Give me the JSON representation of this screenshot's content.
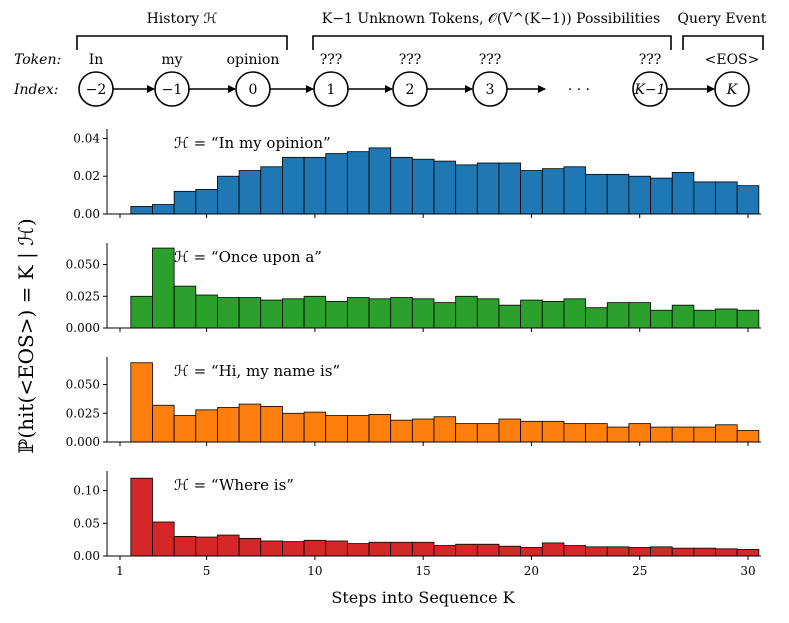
{
  "diagram": {
    "bracket_history": "History ℋ",
    "bracket_unknown": "K−1 Unknown Tokens, 𝒪(V^(K−1)) Possibilities",
    "bracket_query": "Query Event",
    "token_row_label": "Token:",
    "index_row_label": "Index:",
    "tokens": [
      "In",
      "my",
      "opinion",
      "???",
      "???",
      "???",
      "???",
      "<EOS>"
    ],
    "indices": [
      "−2",
      "−1",
      "0",
      "1",
      "2",
      "3",
      "K−1",
      "K"
    ],
    "ellipsis": "· · ·"
  },
  "chart_data": [
    {
      "type": "bar",
      "title": "ℋ = “In my opinion”",
      "color": "#1f77b4",
      "x": [
        2,
        3,
        4,
        5,
        6,
        7,
        8,
        9,
        10,
        11,
        12,
        13,
        14,
        15,
        16,
        17,
        18,
        19,
        20,
        21,
        22,
        23,
        24,
        25,
        26,
        27,
        28,
        29,
        30
      ],
      "values": [
        0.004,
        0.005,
        0.012,
        0.013,
        0.02,
        0.023,
        0.025,
        0.03,
        0.03,
        0.032,
        0.033,
        0.035,
        0.03,
        0.029,
        0.028,
        0.026,
        0.027,
        0.027,
        0.023,
        0.024,
        0.025,
        0.021,
        0.021,
        0.02,
        0.019,
        0.022,
        0.017,
        0.017,
        0.015
      ],
      "yticks": [
        "0.00",
        "0.02",
        "0.04"
      ],
      "ylim": [
        0,
        0.045
      ]
    },
    {
      "type": "bar",
      "title": "ℋ = “Once upon a”",
      "color": "#2ca02c",
      "x": [
        2,
        3,
        4,
        5,
        6,
        7,
        8,
        9,
        10,
        11,
        12,
        13,
        14,
        15,
        16,
        17,
        18,
        19,
        20,
        21,
        22,
        23,
        24,
        25,
        26,
        27,
        28,
        29,
        30
      ],
      "values": [
        0.025,
        0.063,
        0.033,
        0.026,
        0.024,
        0.024,
        0.022,
        0.023,
        0.025,
        0.021,
        0.024,
        0.023,
        0.024,
        0.023,
        0.02,
        0.025,
        0.023,
        0.018,
        0.022,
        0.021,
        0.023,
        0.016,
        0.02,
        0.02,
        0.014,
        0.018,
        0.014,
        0.015,
        0.014
      ],
      "yticks": [
        "0.000",
        "0.025",
        "0.050"
      ],
      "ylim": [
        0,
        0.067
      ]
    },
    {
      "type": "bar",
      "title": "ℋ = “Hi, my name is”",
      "color": "#ff7f0e",
      "x": [
        2,
        3,
        4,
        5,
        6,
        7,
        8,
        9,
        10,
        11,
        12,
        13,
        14,
        15,
        16,
        17,
        18,
        19,
        20,
        21,
        22,
        23,
        24,
        25,
        26,
        27,
        28,
        29,
        30
      ],
      "values": [
        0.069,
        0.032,
        0.023,
        0.028,
        0.03,
        0.033,
        0.031,
        0.025,
        0.026,
        0.023,
        0.023,
        0.024,
        0.019,
        0.02,
        0.022,
        0.016,
        0.016,
        0.02,
        0.018,
        0.018,
        0.016,
        0.016,
        0.013,
        0.016,
        0.013,
        0.013,
        0.013,
        0.015,
        0.01
      ],
      "yticks": [
        "0.000",
        "0.025",
        "0.050"
      ],
      "ylim": [
        0,
        0.074
      ]
    },
    {
      "type": "bar",
      "title": "ℋ = “Where is”",
      "color": "#d62728",
      "x": [
        2,
        3,
        4,
        5,
        6,
        7,
        8,
        9,
        10,
        11,
        12,
        13,
        14,
        15,
        16,
        17,
        18,
        19,
        20,
        21,
        22,
        23,
        24,
        25,
        26,
        27,
        28,
        29,
        30
      ],
      "values": [
        0.119,
        0.052,
        0.03,
        0.029,
        0.032,
        0.027,
        0.023,
        0.022,
        0.024,
        0.023,
        0.019,
        0.021,
        0.021,
        0.021,
        0.016,
        0.018,
        0.018,
        0.015,
        0.013,
        0.02,
        0.016,
        0.014,
        0.014,
        0.013,
        0.014,
        0.012,
        0.012,
        0.011,
        0.01
      ],
      "yticks": [
        "0.00",
        "0.05",
        "0.10"
      ],
      "ylim": [
        0,
        0.13
      ]
    }
  ],
  "x_axis": {
    "ticks": [
      1,
      5,
      10,
      15,
      20,
      25,
      30
    ],
    "xlim": [
      0.4,
      30.6
    ],
    "label": "Steps into Sequence K"
  },
  "y_axis_label": "ℙ(hit(<EOS>) = K | ℋ)"
}
